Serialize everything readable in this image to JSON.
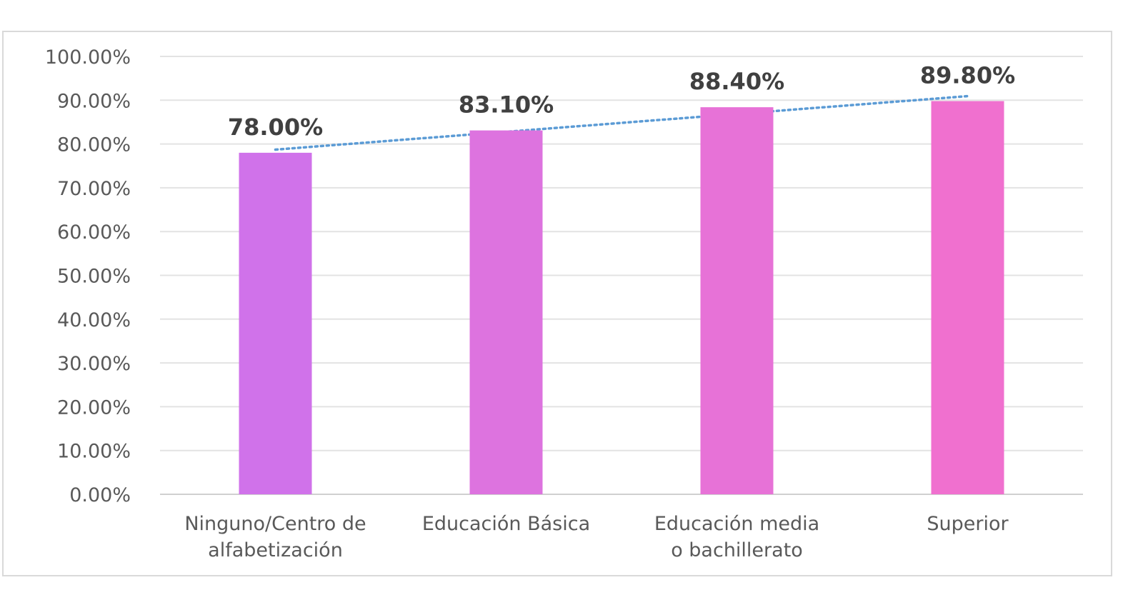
{
  "chart_data": {
    "type": "bar",
    "categories": [
      [
        "Ninguno/Centro de",
        "alfabetización"
      ],
      [
        "Educación Básica"
      ],
      [
        "Educación media",
        "o bachillerato"
      ],
      [
        "Superior"
      ]
    ],
    "values": [
      78.0,
      83.1,
      88.4,
      89.8
    ],
    "data_labels": [
      "78.00%",
      "83.10%",
      "88.40%",
      "89.80%"
    ],
    "y_tick_labels": [
      "0.00%",
      "10.00%",
      "20.00%",
      "30.00%",
      "40.00%",
      "50.00%",
      "60.00%",
      "70.00%",
      "80.00%",
      "90.00%",
      "100.00%"
    ],
    "ylim": [
      0,
      100
    ],
    "grid": true,
    "legend": "none",
    "trendline": {
      "type": "linear",
      "style": "dotted",
      "color": "#5b9bd5"
    },
    "bar_colors": [
      "#d072ea",
      "#dd73df",
      "#e772d7",
      "#f070cf"
    ]
  }
}
